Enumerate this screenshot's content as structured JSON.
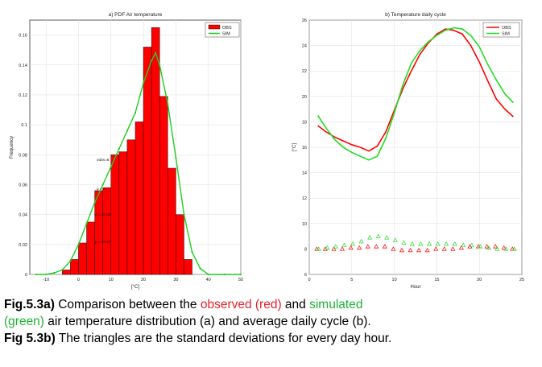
{
  "chart_data": [
    {
      "type": "bar",
      "title": "a) PDF Air temperature",
      "xlabel": "[°C]",
      "ylabel": "Frequency",
      "xlim": [
        -15,
        50
      ],
      "ylim": [
        0,
        0.17
      ],
      "xticks": [
        "-10",
        "0",
        "10",
        "20",
        "30",
        "40",
        "50"
      ],
      "yticks": [
        "0",
        "0.02",
        "0.04",
        "0.06",
        "0.08",
        "0.1",
        "0.12",
        "0.14",
        "0.16"
      ],
      "legend": "top-right",
      "grid": true,
      "series": [
        {
          "name": "OBS",
          "type": "bar",
          "color": "#ff0000",
          "x": [
            -11.25,
            -8.75,
            -6.25,
            -3.75,
            -1.25,
            1.25,
            3.75,
            6.25,
            8.75,
            11.25,
            13.75,
            16.25,
            18.75,
            21.25,
            23.75,
            26.25,
            28.75,
            31.25,
            33.75,
            36.25
          ],
          "values": [
            0.0,
            0.0,
            0.0,
            0.003,
            0.01,
            0.021,
            0.035,
            0.056,
            0.058,
            0.08,
            0.082,
            0.09,
            0.102,
            0.152,
            0.165,
            0.119,
            0.071,
            0.04,
            0.01,
            0.0
          ]
        },
        {
          "name": "SIM",
          "type": "line",
          "color": "#22cc22",
          "x": [
            -13,
            -10,
            -7.5,
            -5,
            -2.5,
            0,
            2.5,
            5,
            7.5,
            10,
            12.5,
            15,
            17.5,
            20,
            22.5,
            23.75,
            25,
            27.5,
            30,
            32.5,
            35,
            37.5,
            40,
            45,
            50
          ],
          "values": [
            0.0,
            0.0,
            0.001,
            0.003,
            0.009,
            0.02,
            0.034,
            0.048,
            0.06,
            0.072,
            0.084,
            0.096,
            0.108,
            0.128,
            0.143,
            0.148,
            0.14,
            0.114,
            0.078,
            0.04,
            0.015,
            0.004,
            0.0,
            0.0,
            0.0
          ]
        }
      ],
      "annotations": [
        "σobs=8.",
        "μ = 7",
        "σ = 20.08",
        "μ = 15.64",
        "μ = 15.86"
      ]
    },
    {
      "type": "line",
      "title": "b) Temperature daily cycle",
      "xlabel": "Hour",
      "ylabel": "[°C]",
      "xlim": [
        0,
        25
      ],
      "ylim": [
        6,
        26
      ],
      "xticks": [
        "0",
        "5",
        "10",
        "15",
        "20",
        "25"
      ],
      "yticks": [
        "6",
        "8",
        "10",
        "12",
        "14",
        "16",
        "18",
        "20",
        "22",
        "24",
        "26"
      ],
      "legend": "top-right",
      "grid": true,
      "x": [
        1,
        2,
        3,
        4,
        5,
        6,
        7,
        8,
        9,
        10,
        11,
        12,
        13,
        14,
        15,
        16,
        17,
        18,
        19,
        20,
        21,
        22,
        23,
        24
      ],
      "series": [
        {
          "name": "OBS",
          "color": "#ff0000",
          "values": [
            17.7,
            17.2,
            16.8,
            16.5,
            16.2,
            16.0,
            15.7,
            16.1,
            17.2,
            18.9,
            20.6,
            22.0,
            23.3,
            24.2,
            24.9,
            25.3,
            25.2,
            24.9,
            24.0,
            22.7,
            21.2,
            19.8,
            19.0,
            18.4
          ],
          "std": [
            8.0,
            8.0,
            8.0,
            8.0,
            8.1,
            8.1,
            8.2,
            8.2,
            8.2,
            8.0,
            7.9,
            7.9,
            7.9,
            7.9,
            8.0,
            8.0,
            8.0,
            8.1,
            8.2,
            8.2,
            8.2,
            8.2,
            8.1,
            8.0
          ]
        },
        {
          "name": "SIM",
          "color": "#22dd22",
          "values": [
            18.5,
            17.5,
            16.6,
            16.0,
            15.6,
            15.3,
            15.0,
            15.3,
            16.7,
            18.7,
            20.9,
            22.6,
            23.6,
            24.3,
            24.8,
            25.2,
            25.4,
            25.3,
            24.8,
            23.9,
            22.5,
            21.3,
            20.2,
            19.5
          ],
          "std": [
            8.0,
            8.1,
            8.2,
            8.3,
            8.4,
            8.6,
            8.9,
            9.0,
            8.9,
            8.7,
            8.5,
            8.4,
            8.4,
            8.4,
            8.4,
            8.4,
            8.4,
            8.3,
            8.3,
            8.2,
            8.1,
            8.0,
            8.0,
            8.0
          ]
        }
      ]
    }
  ],
  "caption": {
    "line1_label": "Fig.5.3a)",
    "line1_a": " Comparison between the ",
    "line1_red": "observed (red)",
    "line1_b": " and ",
    "line1_green": "simulated",
    "line2_green": "(green)",
    "line2_rest": " air temperature distribution (a) and average daily cycle (b).",
    "line3_label": "Fig 5.3b)",
    "line3_rest": " The triangles are the standard deviations for every day hour."
  }
}
